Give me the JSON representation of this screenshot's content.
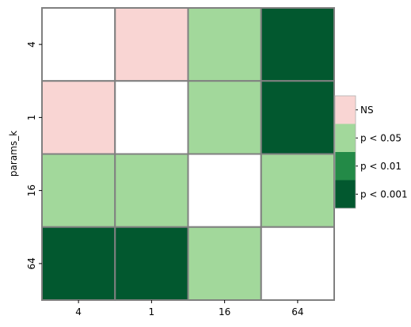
{
  "chart_data": {
    "type": "heatmap",
    "ylabel": "params_k",
    "xlabel": "",
    "categories": [
      "4",
      "1",
      "16",
      "64"
    ],
    "levels": [
      {
        "key": "NS",
        "label": "NS",
        "color": "#f9d5d3"
      },
      {
        "key": "p05",
        "label": "p < 0.05",
        "color": "#a2d89b"
      },
      {
        "key": "p01",
        "label": "p < 0.01",
        "color": "#238a47"
      },
      {
        "key": "p001",
        "label": "p < 0.001",
        "color": "#02582f"
      }
    ],
    "diagonal_color": "#ffffff",
    "grid_color": "#808080",
    "legend_position": "right",
    "matrix": [
      [
        null,
        "NS",
        "p05",
        "p001"
      ],
      [
        "NS",
        null,
        "p05",
        "p001"
      ],
      [
        "p05",
        "p05",
        null,
        "p05"
      ],
      [
        "p001",
        "p001",
        "p05",
        null
      ]
    ]
  }
}
